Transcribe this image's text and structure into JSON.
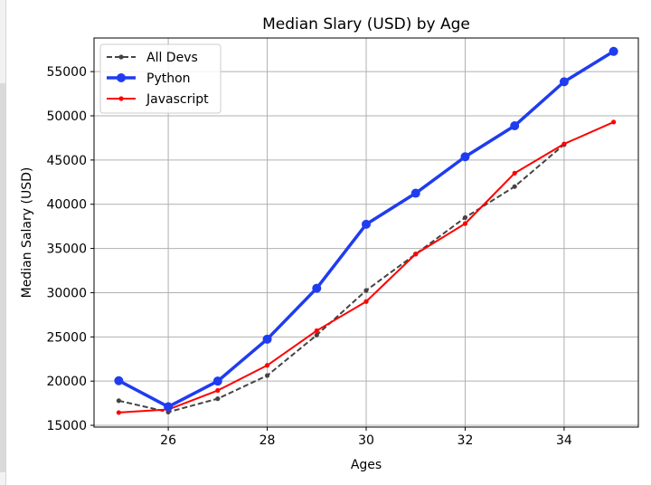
{
  "chart_data": {
    "type": "line",
    "title": "Median Slary (USD) by Age",
    "xlabel": "Ages",
    "ylabel": "Median Salary (USD)",
    "x": [
      25,
      26,
      27,
      28,
      29,
      30,
      31,
      32,
      33,
      34,
      35
    ],
    "xlim": [
      24.5,
      35.5
    ],
    "ylim": [
      14800,
      58800
    ],
    "xticks": [
      26,
      28,
      30,
      32,
      34
    ],
    "yticks": [
      15000,
      20000,
      25000,
      30000,
      35000,
      40000,
      45000,
      50000,
      55000
    ],
    "grid": true,
    "legend_position": "top-left",
    "series": [
      {
        "name": "All Devs",
        "values": [
          17784,
          16500,
          18012,
          20628,
          25206,
          30252,
          34368,
          38496,
          42000,
          46752,
          null
        ],
        "color": "#444444",
        "style": "dashed",
        "marker": "small-circle"
      },
      {
        "name": "Python",
        "values": [
          20046,
          17100,
          20000,
          24744,
          30500,
          37732,
          41247,
          45372,
          48876,
          53850,
          57287
        ],
        "color": "#1f3cf0",
        "style": "solid-thick",
        "marker": "large-circle"
      },
      {
        "name": "Javascript",
        "values": [
          16446,
          16791,
          18942,
          21780,
          25704,
          29000,
          34372,
          37810,
          43515,
          46823,
          49293
        ],
        "color": "#ff0000",
        "style": "solid",
        "marker": "small-circle"
      }
    ]
  }
}
